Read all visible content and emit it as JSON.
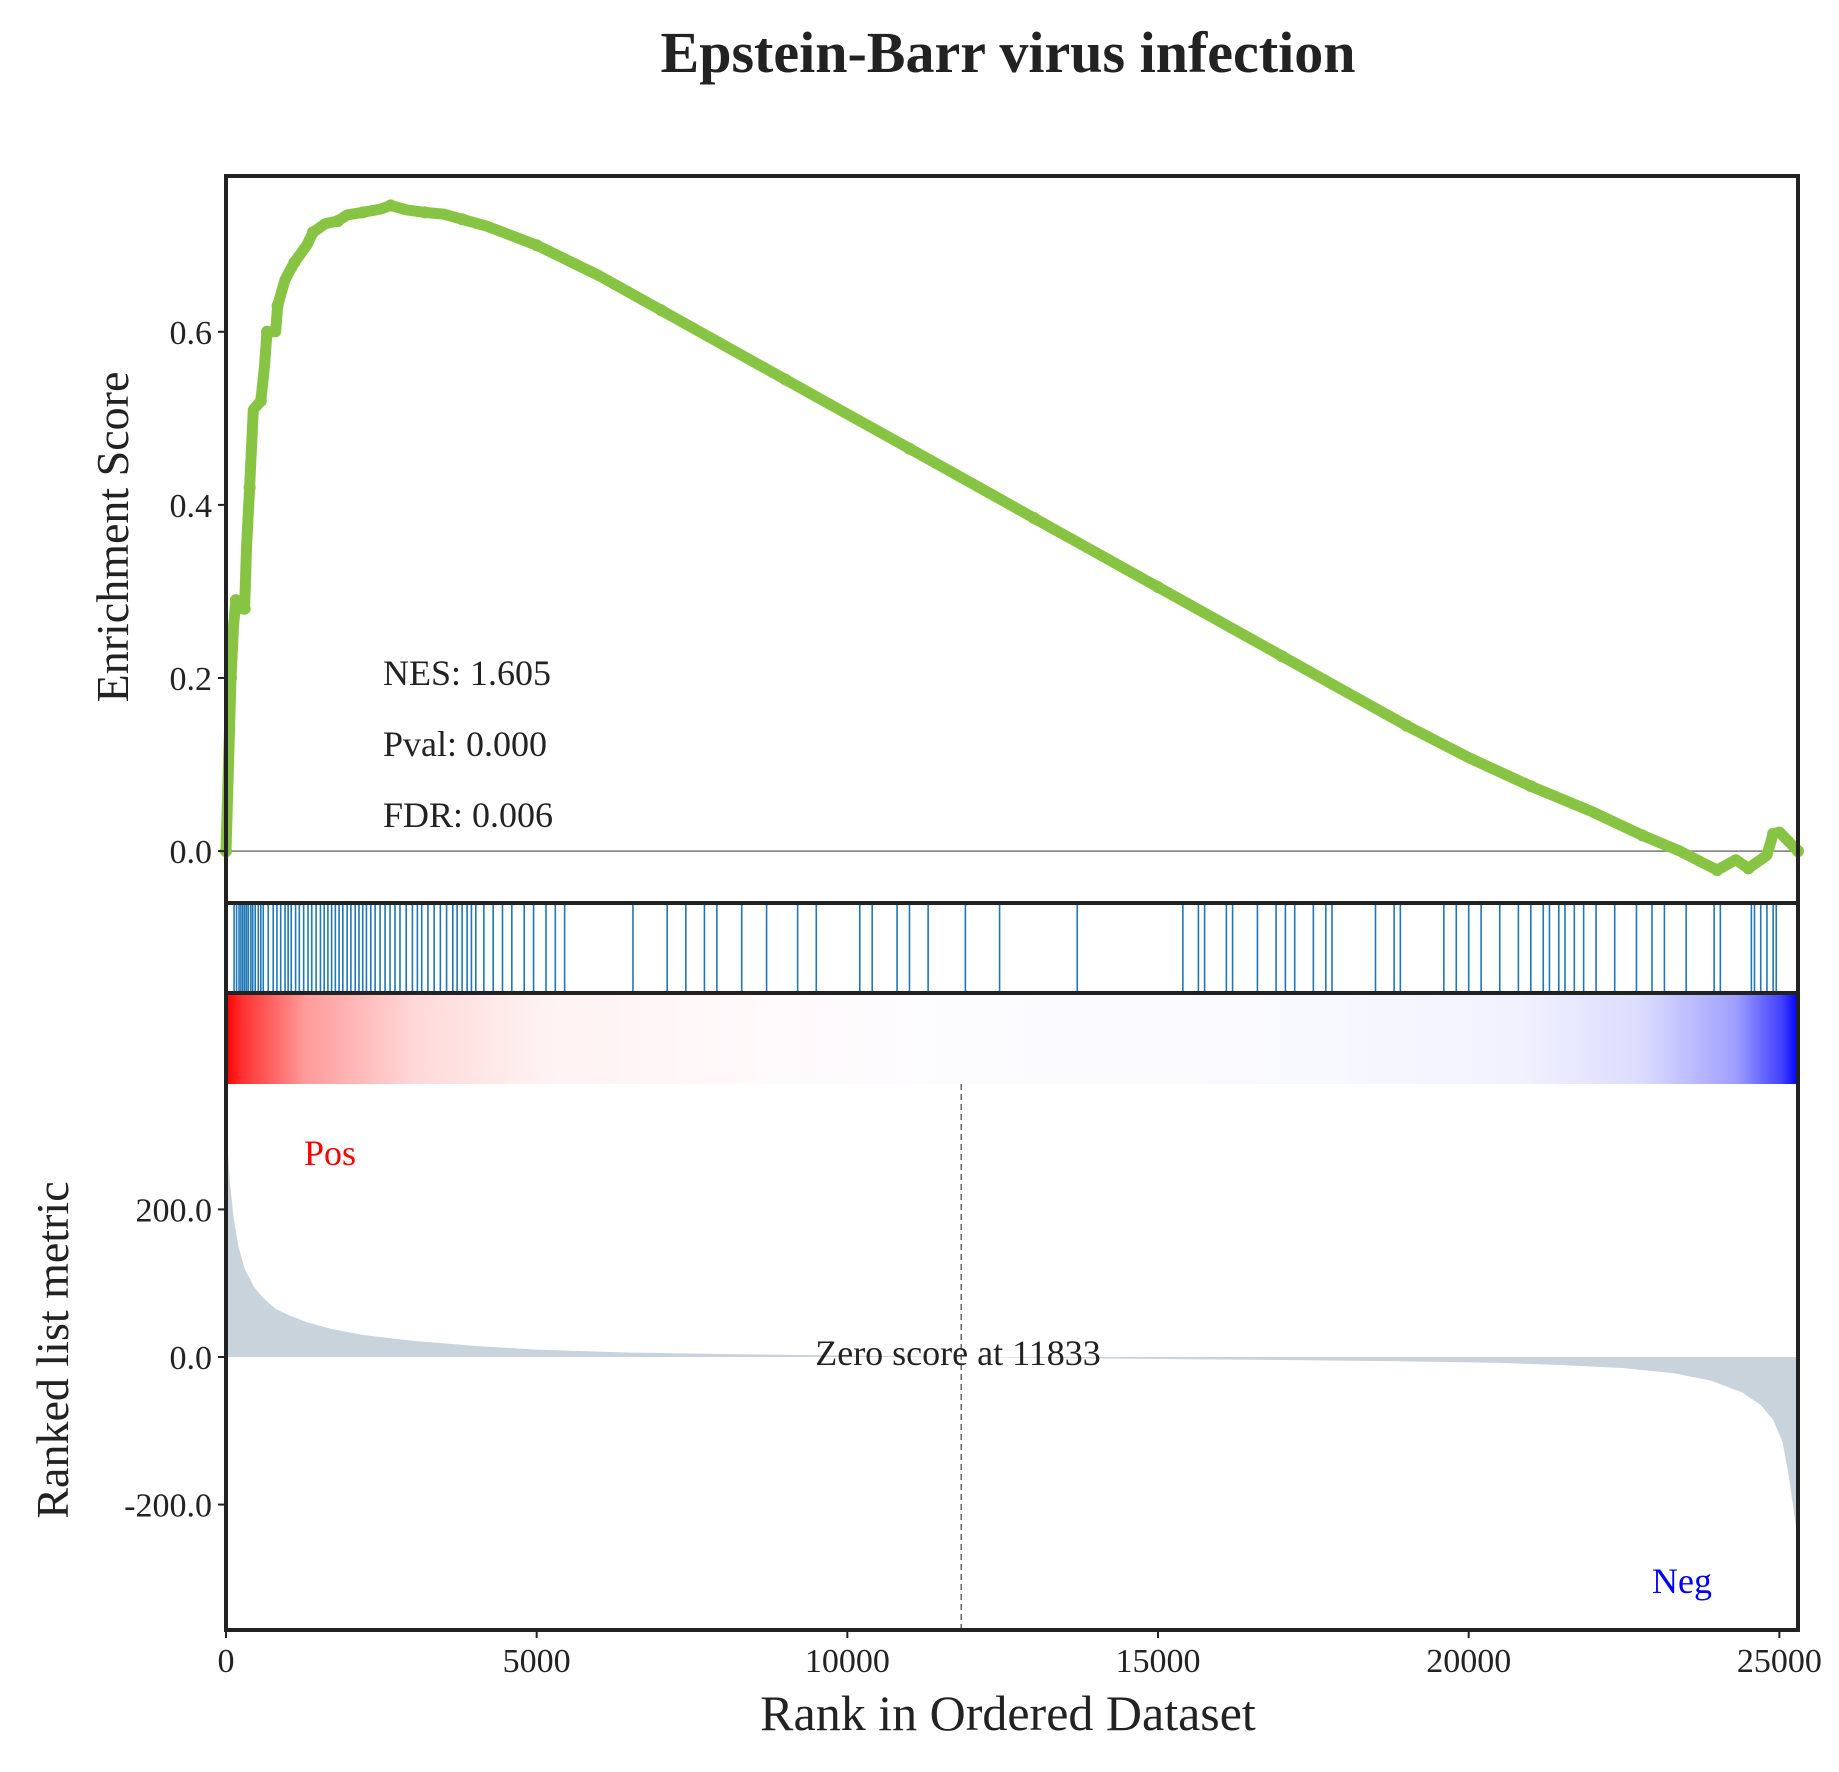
{
  "chart_data": {
    "type": "line",
    "title": "Epstein-Barr virus infection",
    "xlabel": "Rank in Ordered Dataset",
    "xlim": [
      0,
      25300
    ],
    "x_ticks": [
      "0",
      "5000",
      "10000",
      "15000",
      "20000",
      "25000"
    ],
    "grid": false,
    "colors": {
      "es_line": "#88c444",
      "hits": "#1f77b4",
      "metric_fill": "#c8d3dc",
      "pos": "#ff0000",
      "neg": "#0000ff",
      "frame": "#222222"
    },
    "enrichment": {
      "ylabel": "Enrichment Score",
      "ylim": [
        -0.06,
        0.78
      ],
      "y_ticks": [
        "0.0",
        "0.2",
        "0.4",
        "0.6"
      ],
      "stats": [
        "NES: 1.605",
        "Pval: 0.000",
        "FDR: 0.006"
      ],
      "points": [
        [
          0,
          0.0
        ],
        [
          40,
          0.1
        ],
        [
          80,
          0.2
        ],
        [
          120,
          0.26
        ],
        [
          160,
          0.29
        ],
        [
          220,
          0.28
        ],
        [
          300,
          0.28
        ],
        [
          330,
          0.35
        ],
        [
          380,
          0.42
        ],
        [
          440,
          0.51
        ],
        [
          560,
          0.52
        ],
        [
          620,
          0.56
        ],
        [
          660,
          0.6
        ],
        [
          800,
          0.6
        ],
        [
          830,
          0.63
        ],
        [
          950,
          0.66
        ],
        [
          1100,
          0.68
        ],
        [
          1300,
          0.7
        ],
        [
          1400,
          0.715
        ],
        [
          1600,
          0.725
        ],
        [
          1800,
          0.728
        ],
        [
          1950,
          0.735
        ],
        [
          2200,
          0.738
        ],
        [
          2500,
          0.742
        ],
        [
          2650,
          0.746
        ],
        [
          2900,
          0.741
        ],
        [
          3200,
          0.738
        ],
        [
          3500,
          0.736
        ],
        [
          3800,
          0.73
        ],
        [
          4200,
          0.722
        ],
        [
          5000,
          0.7
        ],
        [
          6000,
          0.665
        ],
        [
          7000,
          0.625
        ],
        [
          8000,
          0.585
        ],
        [
          9000,
          0.545
        ],
        [
          10000,
          0.505
        ],
        [
          11000,
          0.465
        ],
        [
          12000,
          0.425
        ],
        [
          13000,
          0.385
        ],
        [
          14000,
          0.345
        ],
        [
          15000,
          0.305
        ],
        [
          16000,
          0.265
        ],
        [
          17000,
          0.225
        ],
        [
          18000,
          0.185
        ],
        [
          19000,
          0.145
        ],
        [
          20000,
          0.108
        ],
        [
          21000,
          0.075
        ],
        [
          22000,
          0.045
        ],
        [
          22800,
          0.018
        ],
        [
          23400,
          0.0
        ],
        [
          24000,
          -0.022
        ],
        [
          24300,
          -0.01
        ],
        [
          24500,
          -0.02
        ],
        [
          24800,
          -0.005
        ],
        [
          24900,
          0.02
        ],
        [
          25000,
          0.022
        ],
        [
          25300,
          0.0
        ]
      ]
    },
    "hits": [
      130,
      170,
      210,
      240,
      270,
      300,
      330,
      360,
      400,
      430,
      470,
      520,
      560,
      600,
      680,
      760,
      820,
      880,
      950,
      1000,
      1050,
      1120,
      1180,
      1250,
      1320,
      1380,
      1450,
      1520,
      1580,
      1640,
      1700,
      1760,
      1820,
      1880,
      1950,
      2010,
      2080,
      2140,
      2200,
      2260,
      2330,
      2400,
      2480,
      2560,
      2640,
      2720,
      2800,
      2900,
      3000,
      3080,
      3150,
      3250,
      3350,
      3450,
      3550,
      3650,
      3720,
      3800,
      3880,
      3950,
      4020,
      4150,
      4300,
      4450,
      4600,
      4800,
      4950,
      5150,
      5300,
      5450,
      6550,
      7100,
      7400,
      7700,
      7900,
      8300,
      8700,
      9200,
      9500,
      10200,
      10400,
      10800,
      11000,
      11300,
      11900,
      12450,
      13700,
      15400,
      15650,
      15750,
      16100,
      16200,
      16600,
      16900,
      17050,
      17200,
      17500,
      17700,
      17800,
      18500,
      18800,
      18900,
      19600,
      19800,
      20000,
      20200,
      20500,
      20800,
      21000,
      21200,
      21300,
      21450,
      21550,
      21700,
      21850,
      22050,
      22350,
      22700,
      22950,
      23150,
      23500,
      23950,
      24050,
      24550,
      24600,
      24700,
      24800,
      24900,
      24950
    ],
    "metric": {
      "ylabel": "Ranked list metric",
      "ylim": [
        -370,
        370
      ],
      "y_ticks": [
        "200.0",
        "0.0",
        "-200.0"
      ],
      "zero_cross": 11833,
      "zero_label": "Zero score at 11833",
      "pos_label": "Pos",
      "neg_label": "Neg",
      "points": [
        [
          0,
          330
        ],
        [
          20,
          290
        ],
        [
          60,
          240
        ],
        [
          120,
          190
        ],
        [
          200,
          150
        ],
        [
          300,
          120
        ],
        [
          450,
          95
        ],
        [
          600,
          80
        ],
        [
          800,
          65
        ],
        [
          1000,
          57
        ],
        [
          1300,
          47
        ],
        [
          1700,
          38
        ],
        [
          2200,
          30
        ],
        [
          3000,
          22
        ],
        [
          4000,
          15
        ],
        [
          5000,
          10
        ],
        [
          6500,
          6
        ],
        [
          8000,
          4
        ],
        [
          10000,
          2
        ],
        [
          11833,
          0
        ],
        [
          14000,
          -2
        ],
        [
          17000,
          -4
        ],
        [
          19000,
          -6
        ],
        [
          20500,
          -8
        ],
        [
          21500,
          -11
        ],
        [
          22500,
          -15
        ],
        [
          23300,
          -22
        ],
        [
          23900,
          -32
        ],
        [
          24400,
          -48
        ],
        [
          24700,
          -65
        ],
        [
          24900,
          -85
        ],
        [
          25050,
          -115
        ],
        [
          25150,
          -160
        ],
        [
          25250,
          -220
        ],
        [
          25300,
          -250
        ]
      ]
    }
  }
}
